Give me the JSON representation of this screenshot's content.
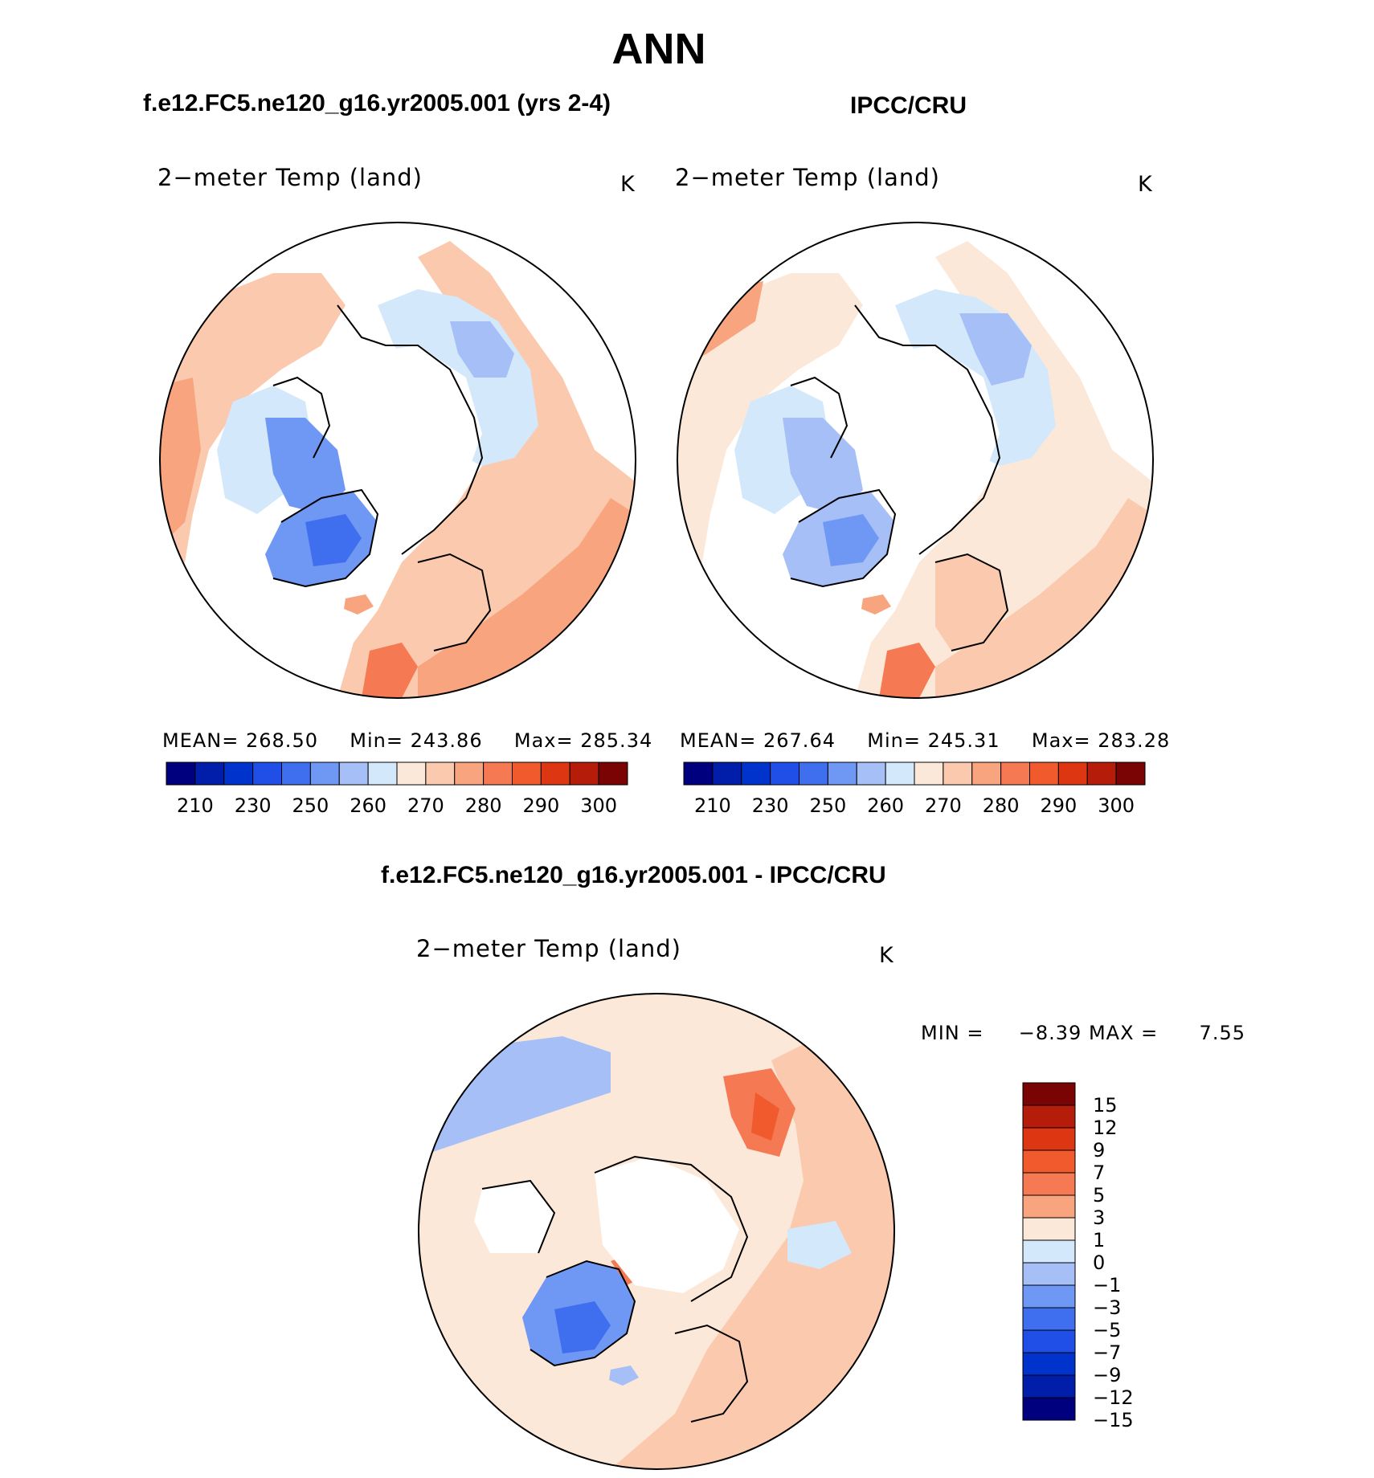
{
  "title": "ANN",
  "panels": [
    {
      "id": "model",
      "case_title": "f.e12.FC5.ne120_g16.yr2005.001 (yrs 2-4)",
      "variable": "2−meter Temp (land)",
      "units": "K",
      "stats": {
        "mean_label": "MEAN=",
        "mean": "268.50",
        "min_label": "Min=",
        "min": "243.86",
        "max_label": "Max=",
        "max": "285.34"
      }
    },
    {
      "id": "obs",
      "case_title": "IPCC/CRU",
      "variable": "2−meter Temp (land)",
      "units": "K",
      "stats": {
        "mean_label": "MEAN=",
        "mean": "267.64",
        "min_label": "Min=",
        "min": "245.31",
        "max_label": "Max=",
        "max": "283.28"
      }
    },
    {
      "id": "diff",
      "case_title": "f.e12.FC5.ne120_g16.yr2005.001 - IPCC/CRU",
      "variable": "2−meter Temp (land)",
      "units": "K",
      "stats": {
        "min_label": "MIN =",
        "min": "−8.39",
        "max_label": "MAX =",
        "max": "7.55"
      }
    }
  ],
  "abs_colorbar": {
    "colors": [
      "#00007f",
      "#001eaa",
      "#0033cc",
      "#1f4fe6",
      "#3f6fee",
      "#6f98f4",
      "#a6c0f7",
      "#d4e8fb",
      "#fce8d8",
      "#fbc9ad",
      "#f8a47e",
      "#f57a53",
      "#f15a2c",
      "#dc3712",
      "#b51d0a",
      "#7a0303"
    ],
    "tick_labels": [
      "210",
      "230",
      "250",
      "260",
      "270",
      "280",
      "290",
      "300"
    ]
  },
  "diff_colorbar": {
    "colors_top_to_bottom": [
      "#7a0303",
      "#b51d0a",
      "#dc3712",
      "#f15a2c",
      "#f57a53",
      "#f8a47e",
      "#fce8d8",
      "#d4e8fb",
      "#a6c0f7",
      "#6f98f4",
      "#3f6fee",
      "#1f4fe6",
      "#0033cc",
      "#001eaa",
      "#00007f"
    ],
    "labels_top_to_bottom": [
      "15",
      "12",
      "9",
      "7",
      "5",
      "3",
      "1",
      "0",
      "−1",
      "−3",
      "−5",
      "−7",
      "−9",
      "−12",
      "−15"
    ]
  },
  "chart_data": {
    "type": "map",
    "projection": "north polar stereographic",
    "maps": [
      {
        "panel": "model",
        "field": "2-meter Temp (land)",
        "units": "K",
        "mean": 268.5,
        "min": 243.86,
        "max": 285.34,
        "contour_levels": [
          210,
          215,
          220,
          225,
          230,
          235,
          240,
          245,
          250,
          255,
          260,
          265,
          270,
          275,
          280,
          285,
          290,
          295,
          300
        ]
      },
      {
        "panel": "obs",
        "field": "2-meter Temp (land)",
        "units": "K",
        "mean": 267.64,
        "min": 245.31,
        "max": 283.28,
        "contour_levels": [
          210,
          215,
          220,
          225,
          230,
          235,
          240,
          245,
          250,
          255,
          260,
          265,
          270,
          275,
          280,
          285,
          290,
          295,
          300
        ]
      },
      {
        "panel": "diff",
        "field": "2-meter Temp (land)",
        "units": "K",
        "min": -8.39,
        "max": 7.55,
        "contour_levels": [
          -15,
          -12,
          -9,
          -7,
          -5,
          -3,
          -1,
          0,
          1,
          3,
          5,
          7,
          9,
          12,
          15
        ]
      }
    ]
  }
}
